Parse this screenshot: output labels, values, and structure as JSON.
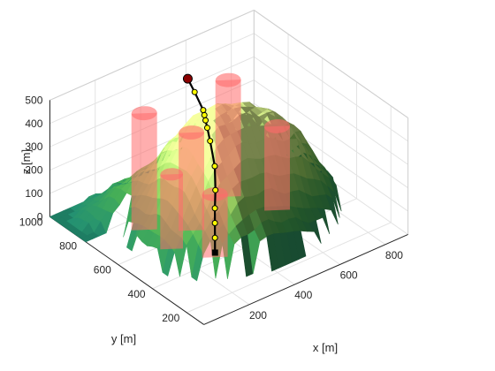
{
  "chart_data": {
    "type": "surface3d",
    "title": "",
    "xlabel": "x [m]",
    "ylabel": "y [m]",
    "zlabel": "z [m]",
    "xlim": [
      0,
      900
    ],
    "ylim": [
      100,
      1000
    ],
    "zlim": [
      0,
      500
    ],
    "xticks": [
      200,
      400,
      600,
      800
    ],
    "yticks": [
      200,
      400,
      600,
      800,
      1000
    ],
    "zticks": [
      0,
      100,
      200,
      300,
      400,
      500
    ],
    "grid": true,
    "surface_colormap": [
      "#1e7d63",
      "#3f9a4a",
      "#8ec45a",
      "#d6ee8a"
    ],
    "obstacle_color": "#ff6b6b",
    "obstacles": [
      {
        "x": 205,
        "y": 720,
        "radius": 45,
        "zmin": 0,
        "zmax": 500
      },
      {
        "x": 205,
        "y": 560,
        "radius": 40,
        "zmin": 0,
        "zmax": 320
      },
      {
        "x": 330,
        "y": 610,
        "radius": 45,
        "zmin": 0,
        "zmax": 420
      },
      {
        "x": 290,
        "y": 420,
        "radius": 45,
        "zmin": 0,
        "zmax": 270
      },
      {
        "x": 560,
        "y": 700,
        "radius": 45,
        "zmin": 0,
        "zmax": 500
      },
      {
        "x": 640,
        "y": 520,
        "radius": 45,
        "zmin": 0,
        "zmax": 360
      }
    ],
    "path": {
      "color": "#000000",
      "waypoint_color": "#ffff00",
      "start": {
        "x": 200,
        "y": 300,
        "z": 120
      },
      "end": {
        "x": 510,
        "y": 870,
        "z": 440
      },
      "waypoints": [
        {
          "x": 230,
          "y": 340,
          "z": 150
        },
        {
          "x": 260,
          "y": 380,
          "z": 180
        },
        {
          "x": 290,
          "y": 420,
          "z": 210
        },
        {
          "x": 330,
          "y": 470,
          "z": 245
        },
        {
          "x": 380,
          "y": 540,
          "z": 290
        },
        {
          "x": 420,
          "y": 620,
          "z": 340
        },
        {
          "x": 445,
          "y": 670,
          "z": 360
        },
        {
          "x": 460,
          "y": 700,
          "z": 370
        },
        {
          "x": 470,
          "y": 720,
          "z": 378
        },
        {
          "x": 480,
          "y": 740,
          "z": 385
        },
        {
          "x": 495,
          "y": 810,
          "z": 420
        }
      ]
    }
  }
}
